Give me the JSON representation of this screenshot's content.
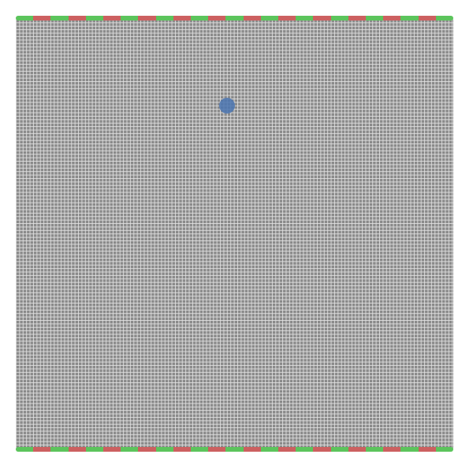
{
  "game": {
    "segment_count": 25,
    "segment_colors": [
      "#5cc45c",
      "#cc6060"
    ],
    "grid_color": "#8a8a8a",
    "agent_color": "#4a74b0",
    "agent_icon": "circle"
  }
}
